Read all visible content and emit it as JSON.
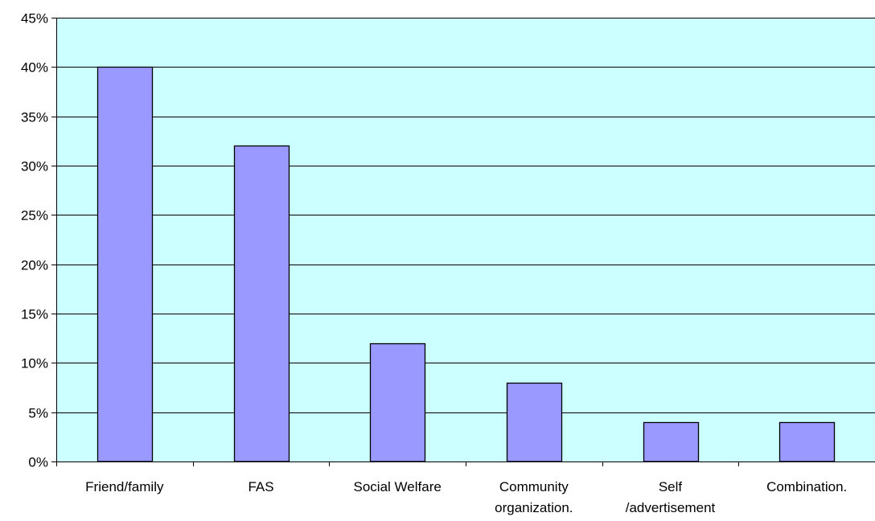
{
  "chart_data": {
    "type": "bar",
    "title": "",
    "xlabel": "",
    "ylabel": "",
    "categories": [
      [
        "Friend/family"
      ],
      [
        "FAS"
      ],
      [
        "Social Welfare"
      ],
      [
        "Community",
        "organization."
      ],
      [
        "Self",
        "/advertisement"
      ],
      [
        "Combination."
      ]
    ],
    "values": [
      40,
      32,
      12,
      8,
      4,
      4
    ],
    "ylim": [
      0,
      45
    ],
    "yticks": [
      0,
      5,
      10,
      15,
      20,
      25,
      30,
      35,
      40,
      45
    ],
    "ytick_labels": [
      "0%",
      "5%",
      "10%",
      "15%",
      "20%",
      "25%",
      "30%",
      "35%",
      "40%",
      "45%"
    ],
    "grid": true,
    "legend": "none",
    "colors": {
      "plot_background": "#ccffff",
      "bar_fill": "#9999ff",
      "bar_stroke": "#000000",
      "gridline": "#000000",
      "axis": "#000000"
    }
  }
}
